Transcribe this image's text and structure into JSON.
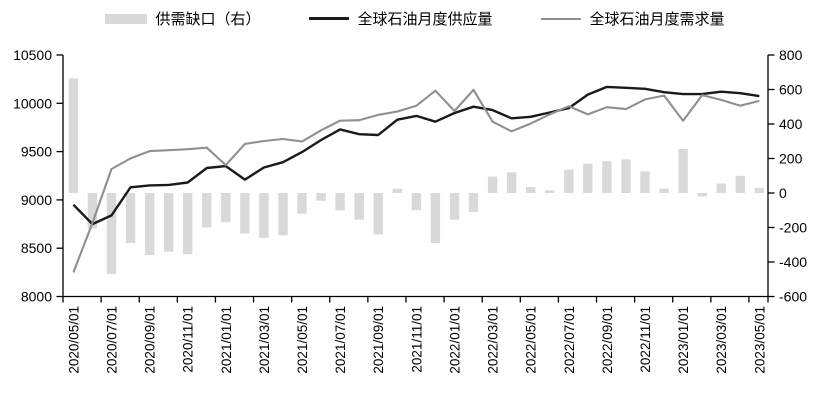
{
  "legend": {
    "items": [
      {
        "label": "供需缺口（右）",
        "type": "bar",
        "color": "#d9d9d9"
      },
      {
        "label": "全球石油月度供应量",
        "type": "line",
        "color": "#1a1a1a"
      },
      {
        "label": "全球石油月度需求量",
        "type": "line",
        "color": "#8f8f8f"
      }
    ]
  },
  "chart_data": {
    "type": "combo-bar-line",
    "months": [
      "2020/05/01",
      "2020/06/01",
      "2020/07/01",
      "2020/08/01",
      "2020/09/01",
      "2020/10/01",
      "2020/11/01",
      "2020/12/01",
      "2021/01/01",
      "2021/02/01",
      "2021/03/01",
      "2021/04/01",
      "2021/05/01",
      "2021/06/01",
      "2021/07/01",
      "2021/08/01",
      "2021/09/01",
      "2021/10/01",
      "2021/11/01",
      "2021/12/01",
      "2022/01/01",
      "2022/02/01",
      "2022/03/01",
      "2022/04/01",
      "2022/05/01",
      "2022/06/01",
      "2022/07/01",
      "2022/08/01",
      "2022/09/01",
      "2022/10/01",
      "2022/11/01",
      "2022/12/01",
      "2023/01/01",
      "2023/02/01",
      "2023/03/01",
      "2023/04/01",
      "2023/05/01"
    ],
    "x_tick_labels": [
      "2020/05/01",
      "2020/07/01",
      "2020/09/01",
      "2020/11/01",
      "2021/01/01",
      "2021/03/01",
      "2021/05/01",
      "2021/07/01",
      "2021/09/01",
      "2021/11/01",
      "2022/01/01",
      "2022/03/01",
      "2022/05/01",
      "2022/07/01",
      "2022/09/01",
      "2022/11/01",
      "2023/01/01",
      "2023/03/01",
      "2023/05/01"
    ],
    "series": [
      {
        "name": "供需缺口（右）",
        "type": "bar",
        "axis": "right",
        "color": "#d9d9d9",
        "values": [
          665,
          -205,
          -470,
          -290,
          -360,
          -340,
          -355,
          -200,
          -170,
          -235,
          -260,
          -245,
          -120,
          -45,
          -100,
          -155,
          -240,
          25,
          -100,
          -290,
          -155,
          -110,
          95,
          120,
          35,
          15,
          135,
          170,
          185,
          195,
          125,
          25,
          255,
          -20,
          55,
          100,
          30
        ]
      },
      {
        "name": "全球石油月度供应量",
        "type": "line",
        "axis": "left",
        "color": "#1a1a1a",
        "values": [
          8950,
          8750,
          8840,
          9130,
          9150,
          9155,
          9180,
          9330,
          9350,
          9210,
          9335,
          9390,
          9495,
          9620,
          9730,
          9680,
          9672,
          9830,
          9870,
          9810,
          9900,
          9965,
          9930,
          9845,
          9860,
          9905,
          9950,
          10090,
          10170,
          10160,
          10150,
          10115,
          10095,
          10095,
          10120,
          10105,
          10075
        ]
      },
      {
        "name": "全球石油月度需求量",
        "type": "line",
        "axis": "left",
        "color": "#8f8f8f",
        "values": [
          8250,
          8760,
          9320,
          9430,
          9505,
          9515,
          9525,
          9540,
          9360,
          9580,
          9610,
          9630,
          9605,
          9720,
          9820,
          9825,
          9880,
          9915,
          9975,
          10130,
          9920,
          10140,
          9810,
          9710,
          9790,
          9885,
          9970,
          9885,
          9960,
          9940,
          10040,
          10080,
          9820,
          10085,
          10035,
          9975,
          10025
        ]
      }
    ],
    "left_axis": {
      "min": 8000,
      "max": 10500,
      "step": 500,
      "tick_labels": [
        "10500",
        "10000",
        "9500",
        "9000",
        "8500",
        "8000"
      ]
    },
    "right_axis": {
      "min": -600,
      "max": 800,
      "step": 200,
      "tick_labels": [
        "800",
        "600",
        "400",
        "200",
        "0",
        "-200",
        "-400",
        "-600"
      ]
    },
    "grid": false,
    "legend_position": "top"
  }
}
